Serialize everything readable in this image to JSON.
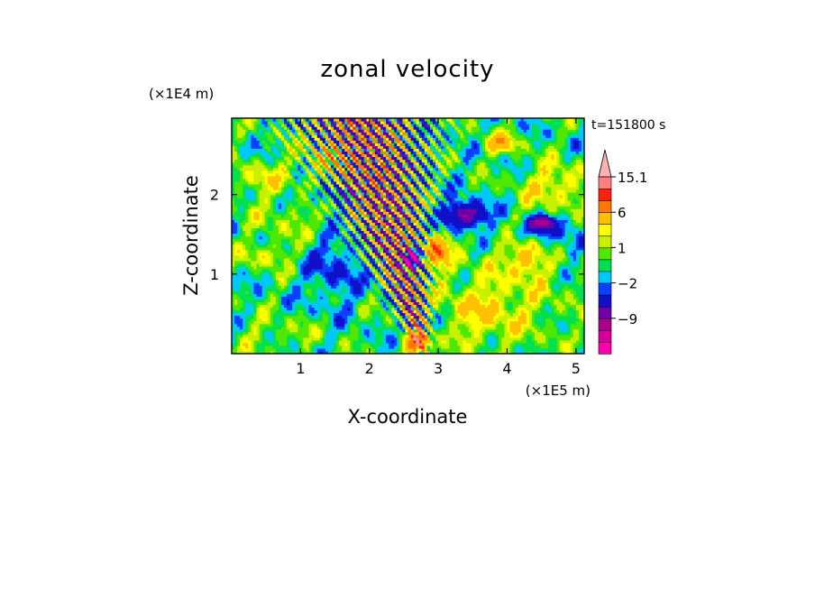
{
  "chart_data": {
    "type": "heatmap",
    "title": "zonal velocity",
    "xlabel": "X-coordinate",
    "ylabel": "Z-coordinate",
    "x_unit": "(×1E5 m)",
    "y_unit": "(×1E4 m)",
    "time_label": "t=151800 s",
    "xlim": [
      0,
      5.12
    ],
    "ylim": [
      0,
      2.96
    ],
    "x_ticks": [
      1,
      2,
      3,
      4,
      5
    ],
    "y_ticks": [
      1,
      2
    ],
    "colorbar": {
      "levels": [
        -15,
        -12,
        -9,
        -6,
        -3,
        -2,
        -1,
        0,
        1,
        2,
        3,
        6,
        9,
        12,
        15.1
      ],
      "colors": [
        "#ff00b0",
        "#d80098",
        "#a8008f",
        "#7000a8",
        "#1010c8",
        "#0a40ff",
        "#00c8ff",
        "#00e050",
        "#50e800",
        "#c8f000",
        "#ffff00",
        "#ffc000",
        "#ff7800",
        "#ff2010",
        "#ff8080",
        "#ffb0b0"
      ],
      "labels": [
        {
          "value": 15.1,
          "text": "15.1"
        },
        {
          "value": 6,
          "text": "6"
        },
        {
          "value": 1,
          "text": "1"
        },
        {
          "value": -2,
          "text": "−2"
        },
        {
          "value": -9,
          "text": "−9"
        }
      ],
      "extend_max": true
    },
    "field_features": [
      {
        "kind": "background",
        "x": 0.6,
        "z": 1.0,
        "value": -0.5
      },
      {
        "kind": "blob",
        "x": 0.4,
        "z": 2.2,
        "rx": 0.4,
        "rz": 0.2,
        "value": 2.5
      },
      {
        "kind": "blob",
        "x": 1.4,
        "z": 2.45,
        "rx": 0.5,
        "rz": 0.25,
        "value": 3.2
      },
      {
        "kind": "blob",
        "x": 0.9,
        "z": 1.7,
        "rx": 0.7,
        "rz": 0.3,
        "value": 1.5
      },
      {
        "kind": "blob",
        "x": 1.5,
        "z": 2.0,
        "rx": 0.4,
        "rz": 0.12,
        "value": -3
      },
      {
        "kind": "blob",
        "x": 0.5,
        "z": 1.25,
        "rx": 0.35,
        "rz": 0.15,
        "value": 2.5
      },
      {
        "kind": "blob",
        "x": 0.6,
        "z": 0.25,
        "rx": 0.6,
        "rz": 0.2,
        "value": 1.5
      },
      {
        "kind": "blob",
        "x": 4.1,
        "z": 0.8,
        "rx": 1.0,
        "rz": 0.7,
        "value": 1.6
      },
      {
        "kind": "blob",
        "x": 3.6,
        "z": 0.5,
        "rx": 0.6,
        "rz": 0.4,
        "value": 2.2
      },
      {
        "kind": "blob",
        "x": 4.7,
        "z": 2.1,
        "rx": 0.45,
        "rz": 0.3,
        "value": 3.5
      },
      {
        "kind": "blob",
        "x": 4.3,
        "z": 1.2,
        "rx": 0.25,
        "rz": 0.2,
        "value": 4
      },
      {
        "kind": "blob",
        "x": 4.8,
        "z": 1.5,
        "rx": 0.3,
        "rz": 0.35,
        "value": -2.2
      },
      {
        "kind": "blob",
        "x": 4.3,
        "z": 1.55,
        "rx": 0.3,
        "rz": 0.12,
        "value": -2.5
      },
      {
        "kind": "blob",
        "x": 2.6,
        "z": 1.2,
        "rx": 0.15,
        "rz": 0.14,
        "value": -11
      },
      {
        "kind": "blob",
        "x": 2.97,
        "z": 1.28,
        "rx": 0.18,
        "rz": 0.2,
        "value": 8
      },
      {
        "kind": "blob",
        "x": 3.9,
        "z": 2.65,
        "rx": 0.25,
        "rz": 0.12,
        "value": 5
      },
      {
        "kind": "blob",
        "x": 3.4,
        "z": 1.75,
        "rx": 0.3,
        "rz": 0.15,
        "value": -9
      },
      {
        "kind": "blob",
        "x": 4.5,
        "z": 1.65,
        "rx": 0.15,
        "rz": 0.08,
        "value": -10
      },
      {
        "kind": "blob",
        "x": 1.5,
        "z": 1.1,
        "rx": 0.4,
        "rz": 0.5,
        "value": -2.5
      },
      {
        "kind": "blob",
        "x": 2.7,
        "z": 0.15,
        "rx": 0.15,
        "rz": 0.15,
        "value": 12
      },
      {
        "kind": "wave_packet",
        "x_min": 2.0,
        "x_max": 3.8,
        "z_min": 0.0,
        "z_max": 2.96,
        "amplitude": 9
      }
    ]
  }
}
